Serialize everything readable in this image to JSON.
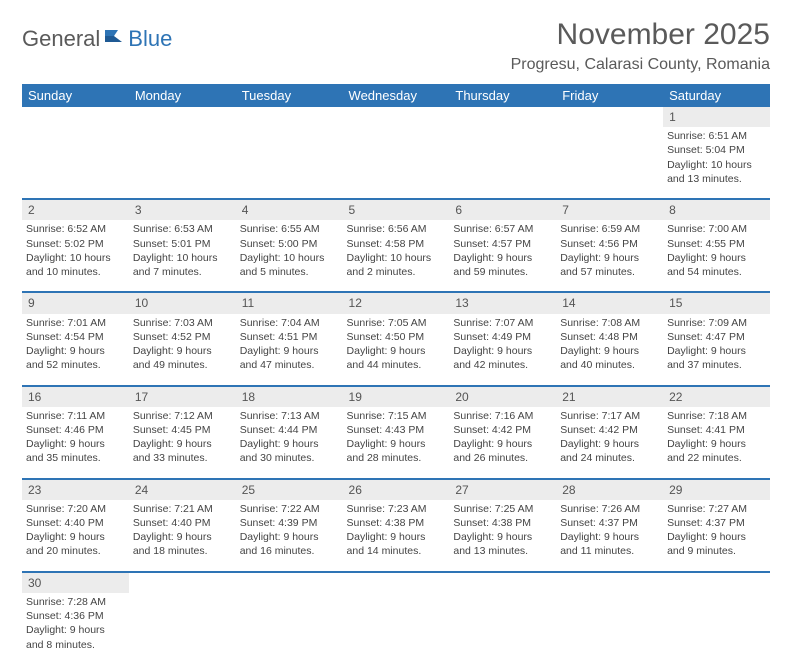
{
  "logo": {
    "part1": "General",
    "part2": "Blue"
  },
  "title": "November 2025",
  "location": "Progresu, Calarasi County, Romania",
  "colors": {
    "headerBg": "#2e74b5",
    "headerText": "#ffffff",
    "dayBg": "#ececec",
    "sep": "#2e74b5"
  },
  "dayHeaders": [
    "Sunday",
    "Monday",
    "Tuesday",
    "Wednesday",
    "Thursday",
    "Friday",
    "Saturday"
  ],
  "weeks": [
    [
      null,
      null,
      null,
      null,
      null,
      null,
      {
        "n": "1",
        "sr": "6:51 AM",
        "ss": "5:04 PM",
        "dl": "10 hours and 13 minutes."
      }
    ],
    [
      {
        "n": "2",
        "sr": "6:52 AM",
        "ss": "5:02 PM",
        "dl": "10 hours and 10 minutes."
      },
      {
        "n": "3",
        "sr": "6:53 AM",
        "ss": "5:01 PM",
        "dl": "10 hours and 7 minutes."
      },
      {
        "n": "4",
        "sr": "6:55 AM",
        "ss": "5:00 PM",
        "dl": "10 hours and 5 minutes."
      },
      {
        "n": "5",
        "sr": "6:56 AM",
        "ss": "4:58 PM",
        "dl": "10 hours and 2 minutes."
      },
      {
        "n": "6",
        "sr": "6:57 AM",
        "ss": "4:57 PM",
        "dl": "9 hours and 59 minutes."
      },
      {
        "n": "7",
        "sr": "6:59 AM",
        "ss": "4:56 PM",
        "dl": "9 hours and 57 minutes."
      },
      {
        "n": "8",
        "sr": "7:00 AM",
        "ss": "4:55 PM",
        "dl": "9 hours and 54 minutes."
      }
    ],
    [
      {
        "n": "9",
        "sr": "7:01 AM",
        "ss": "4:54 PM",
        "dl": "9 hours and 52 minutes."
      },
      {
        "n": "10",
        "sr": "7:03 AM",
        "ss": "4:52 PM",
        "dl": "9 hours and 49 minutes."
      },
      {
        "n": "11",
        "sr": "7:04 AM",
        "ss": "4:51 PM",
        "dl": "9 hours and 47 minutes."
      },
      {
        "n": "12",
        "sr": "7:05 AM",
        "ss": "4:50 PM",
        "dl": "9 hours and 44 minutes."
      },
      {
        "n": "13",
        "sr": "7:07 AM",
        "ss": "4:49 PM",
        "dl": "9 hours and 42 minutes."
      },
      {
        "n": "14",
        "sr": "7:08 AM",
        "ss": "4:48 PM",
        "dl": "9 hours and 40 minutes."
      },
      {
        "n": "15",
        "sr": "7:09 AM",
        "ss": "4:47 PM",
        "dl": "9 hours and 37 minutes."
      }
    ],
    [
      {
        "n": "16",
        "sr": "7:11 AM",
        "ss": "4:46 PM",
        "dl": "9 hours and 35 minutes."
      },
      {
        "n": "17",
        "sr": "7:12 AM",
        "ss": "4:45 PM",
        "dl": "9 hours and 33 minutes."
      },
      {
        "n": "18",
        "sr": "7:13 AM",
        "ss": "4:44 PM",
        "dl": "9 hours and 30 minutes."
      },
      {
        "n": "19",
        "sr": "7:15 AM",
        "ss": "4:43 PM",
        "dl": "9 hours and 28 minutes."
      },
      {
        "n": "20",
        "sr": "7:16 AM",
        "ss": "4:42 PM",
        "dl": "9 hours and 26 minutes."
      },
      {
        "n": "21",
        "sr": "7:17 AM",
        "ss": "4:42 PM",
        "dl": "9 hours and 24 minutes."
      },
      {
        "n": "22",
        "sr": "7:18 AM",
        "ss": "4:41 PM",
        "dl": "9 hours and 22 minutes."
      }
    ],
    [
      {
        "n": "23",
        "sr": "7:20 AM",
        "ss": "4:40 PM",
        "dl": "9 hours and 20 minutes."
      },
      {
        "n": "24",
        "sr": "7:21 AM",
        "ss": "4:40 PM",
        "dl": "9 hours and 18 minutes."
      },
      {
        "n": "25",
        "sr": "7:22 AM",
        "ss": "4:39 PM",
        "dl": "9 hours and 16 minutes."
      },
      {
        "n": "26",
        "sr": "7:23 AM",
        "ss": "4:38 PM",
        "dl": "9 hours and 14 minutes."
      },
      {
        "n": "27",
        "sr": "7:25 AM",
        "ss": "4:38 PM",
        "dl": "9 hours and 13 minutes."
      },
      {
        "n": "28",
        "sr": "7:26 AM",
        "ss": "4:37 PM",
        "dl": "9 hours and 11 minutes."
      },
      {
        "n": "29",
        "sr": "7:27 AM",
        "ss": "4:37 PM",
        "dl": "9 hours and 9 minutes."
      }
    ],
    [
      {
        "n": "30",
        "sr": "7:28 AM",
        "ss": "4:36 PM",
        "dl": "9 hours and 8 minutes."
      },
      null,
      null,
      null,
      null,
      null,
      null
    ]
  ],
  "labels": {
    "sunrise": "Sunrise:",
    "sunset": "Sunset:",
    "daylight": "Daylight:"
  }
}
